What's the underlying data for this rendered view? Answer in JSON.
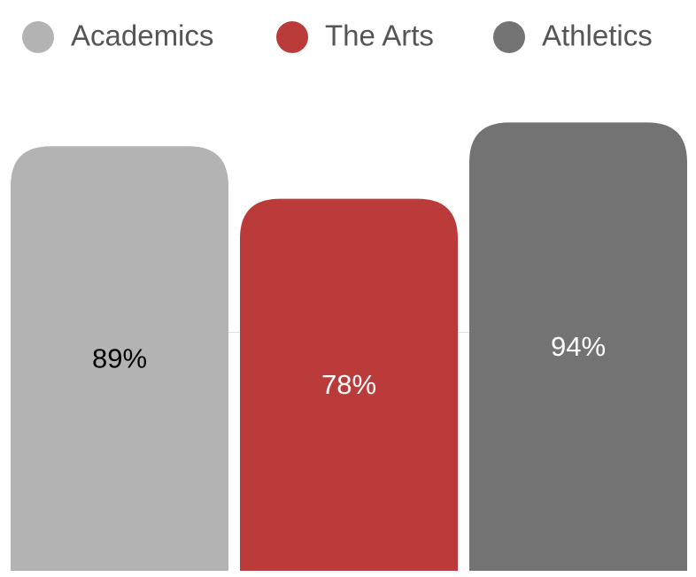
{
  "chart_data": {
    "type": "bar",
    "series": [
      {
        "name": "Academics",
        "color": "#b3b3b3",
        "label_color": "#000000",
        "values": [
          89
        ],
        "value_labels": [
          "89%"
        ]
      },
      {
        "name": "The Arts",
        "color": "#bb3a3a",
        "label_color": "#ffffff",
        "values": [
          78
        ],
        "value_labels": [
          "78%"
        ]
      },
      {
        "name": "Athletics",
        "color": "#737373",
        "label_color": "#ffffff",
        "values": [
          94
        ],
        "value_labels": [
          "94%"
        ]
      }
    ],
    "ylim": [
      0,
      100
    ],
    "yticks": [
      50
    ],
    "grid": true
  }
}
